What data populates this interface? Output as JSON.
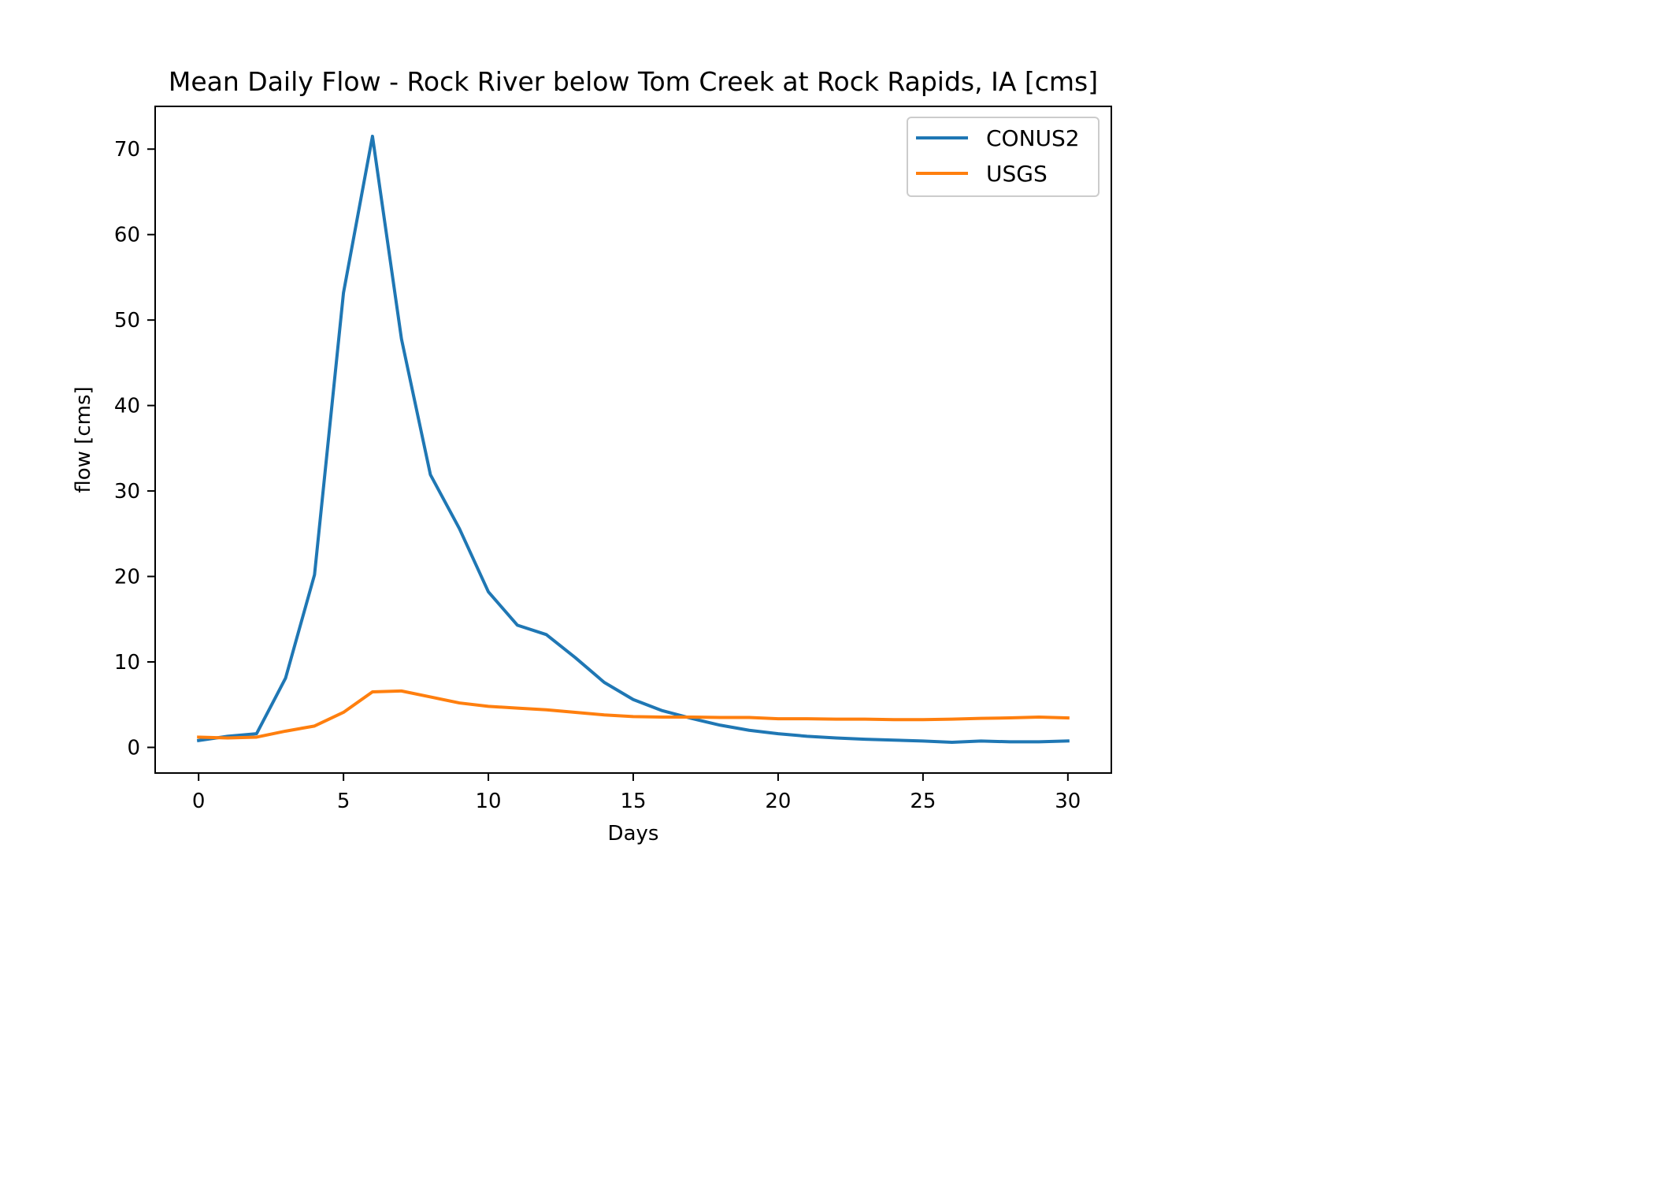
{
  "chart_data": {
    "type": "line",
    "title": "Mean Daily Flow - Rock River below Tom Creek at Rock Rapids, IA [cms]",
    "xlabel": "Days",
    "ylabel": "flow [cms]",
    "xlim": [
      -1.5,
      31.5
    ],
    "ylim": [
      -3,
      75
    ],
    "xticks": [
      0,
      5,
      10,
      15,
      20,
      25,
      30
    ],
    "yticks": [
      0,
      10,
      20,
      30,
      40,
      50,
      60,
      70
    ],
    "grid": false,
    "legend_position": "top-right",
    "x": [
      0,
      1,
      2,
      3,
      4,
      5,
      6,
      7,
      8,
      9,
      10,
      11,
      12,
      13,
      14,
      15,
      16,
      17,
      18,
      19,
      20,
      21,
      22,
      23,
      24,
      25,
      26,
      27,
      28,
      29,
      30
    ],
    "series": [
      {
        "name": "CONUS2",
        "color": "#1f77b4",
        "values": [
          0.8,
          1.3,
          1.6,
          8.1,
          20.2,
          53.2,
          71.5,
          47.8,
          31.9,
          25.6,
          18.2,
          14.3,
          13.2,
          10.5,
          7.6,
          5.6,
          4.3,
          3.4,
          2.6,
          2.0,
          1.6,
          1.3,
          1.1,
          0.95,
          0.85,
          0.75,
          0.6,
          0.75,
          0.65,
          0.65,
          0.75
        ]
      },
      {
        "name": "USGS",
        "color": "#ff7f0e",
        "values": [
          1.2,
          1.1,
          1.2,
          1.9,
          2.5,
          4.1,
          6.5,
          6.6,
          5.9,
          5.2,
          4.8,
          4.6,
          4.4,
          4.1,
          3.8,
          3.6,
          3.55,
          3.55,
          3.5,
          3.5,
          3.35,
          3.35,
          3.3,
          3.3,
          3.25,
          3.25,
          3.3,
          3.4,
          3.45,
          3.55,
          3.45
        ]
      }
    ]
  }
}
